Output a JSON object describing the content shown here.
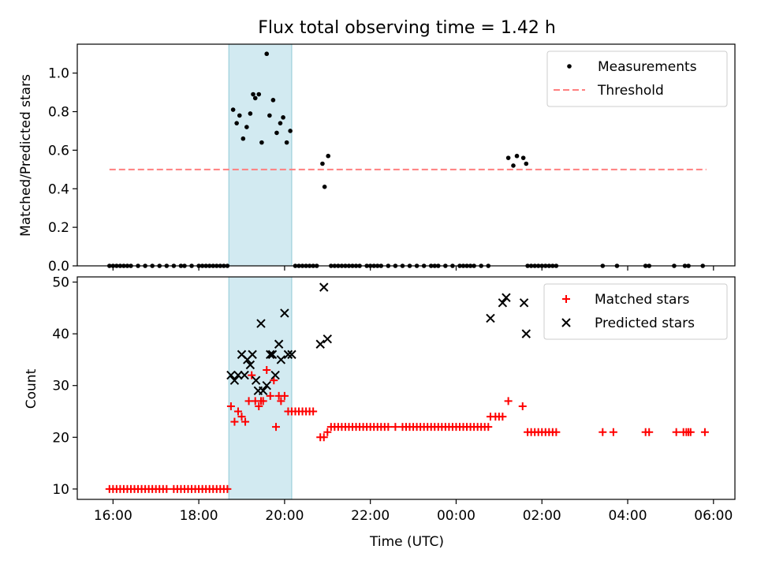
{
  "chart_data": [
    {
      "type": "scatter",
      "title": "Flux total observing time = 1.42 h",
      "xlabel": "",
      "ylabel": "Matched/Predicted stars",
      "x_range": [
        "15:10",
        "06:30"
      ],
      "ylim": [
        0,
        1.15
      ],
      "yticks": [
        "0.0",
        "0.2",
        "0.4",
        "0.6",
        "0.8",
        "1.0"
      ],
      "shaded_span": [
        "18:42",
        "20:10"
      ],
      "shaded_color": "#add8e6",
      "legend_position": "upper right",
      "legend": [
        "Measurements",
        "Threshold"
      ],
      "threshold": {
        "name": "Threshold",
        "y": 0.5,
        "x": [
          "15:55",
          "05:50"
        ],
        "color": "#ff7f7f"
      },
      "series": [
        {
          "name": "Measurements",
          "color": "#000000",
          "marker": "dot",
          "x": [
            "18:48",
            "18:53",
            "18:57",
            "19:02",
            "19:07",
            "19:12",
            "19:16",
            "19:19",
            "19:24",
            "19:28",
            "19:35",
            "19:39",
            "19:44",
            "19:49",
            "19:54",
            "19:58",
            "20:03",
            "20:08",
            "20:53",
            "20:56",
            "21:01",
            "01:13",
            "01:20",
            "01:25",
            "01:34",
            "01:38",
            "15:55",
            "16:00",
            "16:05",
            "16:10",
            "16:15",
            "16:20",
            "16:25",
            "16:35",
            "16:45",
            "16:55",
            "17:05",
            "17:15",
            "17:25",
            "17:35",
            "17:40",
            "17:50",
            "18:00",
            "18:05",
            "18:10",
            "18:15",
            "18:20",
            "18:25",
            "18:30",
            "18:35",
            "18:40",
            "20:15",
            "20:20",
            "20:25",
            "20:30",
            "20:35",
            "20:40",
            "20:45",
            "21:05",
            "21:10",
            "21:15",
            "21:20",
            "21:25",
            "21:30",
            "21:35",
            "21:40",
            "21:45",
            "21:55",
            "22:00",
            "22:05",
            "22:10",
            "22:15",
            "22:25",
            "22:35",
            "22:45",
            "22:55",
            "23:05",
            "23:15",
            "23:25",
            "23:30",
            "23:35",
            "23:45",
            "23:55",
            "00:05",
            "00:10",
            "00:15",
            "00:20",
            "00:25",
            "00:35",
            "00:45",
            "01:40",
            "01:45",
            "01:50",
            "01:55",
            "02:00",
            "02:05",
            "02:10",
            "02:15",
            "02:20",
            "03:25",
            "03:45",
            "04:25",
            "04:30",
            "05:05",
            "05:20",
            "05:25",
            "05:45"
          ],
          "y": [
            0.81,
            0.74,
            0.78,
            0.66,
            0.72,
            0.79,
            0.89,
            0.87,
            0.89,
            0.64,
            1.1,
            0.78,
            0.86,
            0.69,
            0.74,
            0.77,
            0.64,
            0.7,
            0.53,
            0.41,
            0.57,
            0.56,
            0.52,
            0.57,
            0.56,
            0.53,
            0,
            0,
            0,
            0,
            0,
            0,
            0,
            0,
            0,
            0,
            0,
            0,
            0,
            0,
            0,
            0,
            0,
            0,
            0,
            0,
            0,
            0,
            0,
            0,
            0,
            0,
            0,
            0,
            0,
            0,
            0,
            0,
            0,
            0,
            0,
            0,
            0,
            0,
            0,
            0,
            0,
            0,
            0,
            0,
            0,
            0,
            0,
            0,
            0,
            0,
            0,
            0,
            0,
            0,
            0,
            0,
            0,
            0,
            0,
            0,
            0,
            0,
            0,
            0,
            0,
            0,
            0,
            0,
            0,
            0,
            0,
            0,
            0,
            0,
            0,
            0,
            0,
            0,
            0,
            0,
            0
          ]
        }
      ]
    },
    {
      "type": "scatter",
      "title": "",
      "xlabel": "Time (UTC)",
      "ylabel": "Count",
      "x_range": [
        "15:10",
        "06:30"
      ],
      "ylim": [
        8,
        51
      ],
      "yticks": [
        "10",
        "20",
        "30",
        "40",
        "50"
      ],
      "xticks": [
        "16:00",
        "18:00",
        "20:00",
        "22:00",
        "00:00",
        "02:00",
        "04:00",
        "06:00"
      ],
      "shaded_span": [
        "18:42",
        "20:10"
      ],
      "shaded_color": "#add8e6",
      "legend_position": "upper right",
      "legend": [
        "Matched stars",
        "Predicted stars"
      ],
      "series": [
        {
          "name": "Matched stars",
          "color": "#ff0000",
          "marker": "plus",
          "x": [
            "18:45",
            "18:50",
            "18:55",
            "19:00",
            "19:05",
            "19:10",
            "19:14",
            "19:19",
            "19:24",
            "19:27",
            "19:30",
            "19:35",
            "19:40",
            "19:45",
            "19:48",
            "19:52",
            "19:55",
            "20:00",
            "20:05",
            "20:10",
            "20:15",
            "20:20",
            "20:25",
            "20:30",
            "20:35",
            "20:40",
            "20:50",
            "20:55",
            "21:00",
            "21:05",
            "00:48",
            "00:55",
            "01:00",
            "01:05",
            "01:13",
            "01:33",
            "01:40",
            "01:45",
            "01:50",
            "01:55",
            "02:00",
            "02:05",
            "02:10",
            "02:15",
            "02:20",
            "15:55",
            "16:00",
            "16:05",
            "16:10",
            "16:15",
            "16:20",
            "16:25",
            "16:30",
            "16:35",
            "16:40",
            "16:45",
            "16:50",
            "16:55",
            "17:00",
            "17:05",
            "17:10",
            "17:15",
            "17:25",
            "17:30",
            "17:35",
            "17:40",
            "17:45",
            "17:50",
            "17:55",
            "18:00",
            "18:05",
            "18:10",
            "18:15",
            "18:20",
            "18:25",
            "18:30",
            "18:35",
            "18:40",
            "21:10",
            "21:15",
            "21:20",
            "21:25",
            "21:30",
            "21:35",
            "21:40",
            "21:45",
            "21:50",
            "21:55",
            "22:00",
            "22:05",
            "22:10",
            "22:15",
            "22:20",
            "22:25",
            "22:35",
            "22:45",
            "22:50",
            "22:55",
            "23:00",
            "23:05",
            "23:10",
            "23:15",
            "23:20",
            "23:25",
            "23:30",
            "23:35",
            "23:40",
            "23:45",
            "23:50",
            "23:55",
            "00:00",
            "00:05",
            "00:10",
            "00:15",
            "00:20",
            "00:25",
            "00:30",
            "00:35",
            "00:40",
            "00:45",
            "03:25",
            "03:40",
            "04:25",
            "04:30",
            "05:08",
            "05:18",
            "05:22",
            "05:25",
            "05:28",
            "05:48"
          ],
          "y": [
            26,
            23,
            25,
            24,
            23,
            27,
            32,
            27,
            26,
            27,
            27,
            33,
            28,
            31,
            22,
            28,
            27,
            28,
            25,
            25,
            25,
            25,
            25,
            25,
            25,
            25,
            20,
            20,
            21,
            22,
            24,
            24,
            24,
            24,
            27,
            26,
            21,
            21,
            21,
            21,
            21,
            21,
            21,
            21,
            21,
            10,
            10,
            10,
            10,
            10,
            10,
            10,
            10,
            10,
            10,
            10,
            10,
            10,
            10,
            10,
            10,
            10,
            10,
            10,
            10,
            10,
            10,
            10,
            10,
            10,
            10,
            10,
            10,
            10,
            10,
            10,
            10,
            10,
            22,
            22,
            22,
            22,
            22,
            22,
            22,
            22,
            22,
            22,
            22,
            22,
            22,
            22,
            22,
            22,
            22,
            22,
            22,
            22,
            22,
            22,
            22,
            22,
            22,
            22,
            22,
            22,
            22,
            22,
            22,
            22,
            22,
            22,
            22,
            22,
            22,
            22,
            22,
            22,
            22,
            22,
            21,
            21,
            21,
            21,
            21,
            21,
            21,
            21,
            21,
            21
          ]
        },
        {
          "name": "Predicted stars",
          "color": "#000000",
          "marker": "cross",
          "x": [
            "18:45",
            "18:50",
            "18:55",
            "19:00",
            "19:04",
            "19:08",
            "19:12",
            "19:15",
            "19:20",
            "19:23",
            "19:27",
            "19:30",
            "19:35",
            "19:40",
            "19:43",
            "19:47",
            "19:52",
            "19:55",
            "20:00",
            "20:05",
            "20:10",
            "20:50",
            "20:55",
            "21:00",
            "00:48",
            "01:05",
            "01:10",
            "01:35",
            "01:38"
          ],
          "y": [
            32,
            31,
            32,
            36,
            32,
            35,
            34,
            36,
            31,
            29,
            42,
            29,
            30,
            36,
            36,
            32,
            38,
            35,
            44,
            36,
            36,
            38,
            49,
            39,
            43,
            46,
            47,
            46,
            40
          ]
        }
      ]
    }
  ]
}
